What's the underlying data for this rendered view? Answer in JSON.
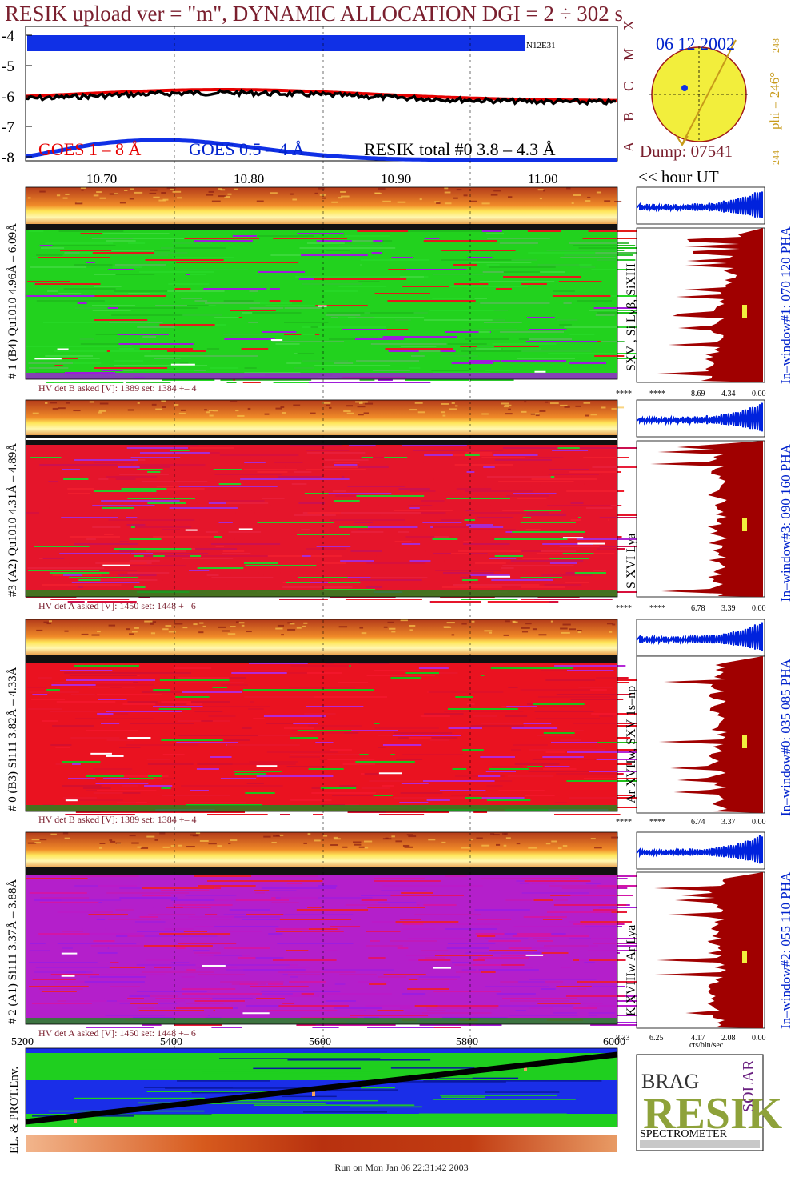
{
  "title": "RESIK upload ver = \"m\", DYNAMIC ALLOCATION  DGI =   2 ÷ 302 s",
  "goes_panel": {
    "yticks": [
      "-4",
      "-5",
      "-6",
      "-7",
      "-8"
    ],
    "flag": "N12E31",
    "legend": [
      {
        "text": "GOES 1 – 8 Å",
        "color": "#e60000"
      },
      {
        "text": "GOES 0.5 – 4 Å",
        "color": "#0022cc"
      },
      {
        "text": "RESIK total #0  3.8 – 4.3 Å",
        "color": "#000000"
      }
    ],
    "class_letters": [
      "X",
      "M",
      "C",
      "B",
      "A"
    ]
  },
  "time_axis": {
    "ticks": [
      "10.70",
      "10.80",
      "10.90",
      "11.00"
    ],
    "unit": "<< hour UT"
  },
  "sun": {
    "date": "06 12 2002",
    "dump": "Dump: 07541",
    "phi": "phi = 246°",
    "phi_hi": "248",
    "phi_lo": "244"
  },
  "channels": [
    {
      "id": "ch1",
      "side_label": "# 1 (B4) Qu1010 4.96Å – 6.09Å",
      "line_label": "SXV , Si Lyβ, SiXIII",
      "window_label": "In–window#1:  070 120 PHA",
      "hv": "HV det B asked [V]:  1389 set:  1384  +–    4",
      "scale": [
        "****",
        "****",
        "8.69",
        "4.34",
        "0.00"
      ]
    },
    {
      "id": "ch3",
      "side_label": "#3 (A2) Qu1010  4.31Å – 4.89Å",
      "line_label": "S XVI Lya",
      "window_label": "In–window#3:  090 160 PHA",
      "hv": "HV det A asked [V]:  1450 set:  1448  +–    6",
      "scale": [
        "****",
        "****",
        "6.78",
        "3.39",
        "0.00"
      ]
    },
    {
      "id": "ch0",
      "side_label": "# 0 (B3) Si111  3.82Å – 4.33Å",
      "line_label": "Ar XVIIw,  SXV 1s–np",
      "window_label": "In–window#0:  035 085 PHA",
      "hv": "HV det B asked [V]:  1389 set:  1384  +–    4",
      "scale": [
        "****",
        "****",
        "6.74",
        "3.37",
        "0.00"
      ]
    },
    {
      "id": "ch2",
      "side_label": "# 2 (A1) Si111  3.37Å – 3.88Å",
      "line_label": "K XVIIIw  Ar Lya",
      "window_label": "In–window#2:  055 110 PHA",
      "hv": "HV det A asked [V]:  1450 set:  1448  +–    6",
      "scale": [
        "8.33",
        "6.25",
        "4.17",
        "2.08",
        "0.00"
      ]
    }
  ],
  "bottom_axis": {
    "ticks": [
      "5200",
      "5400",
      "5600",
      "5800",
      "6000"
    ],
    "hist_unit": "cts/bin/sec"
  },
  "env_label": "EL. & PROT.Env.",
  "logo": {
    "letters": "RESIK",
    "left": "BRAG",
    "right": "SOLAR",
    "bottom": "SPECTROMETER"
  },
  "footer": "Run on Mon Jan 06 22:31:42 2003",
  "colors": {
    "title": "#7a1f2e",
    "goes_long": "#e60000",
    "goes_short": "#0022cc",
    "histogram": "#a00000",
    "hist_top": "#0022dd",
    "sun": "#f2ee3c"
  }
}
